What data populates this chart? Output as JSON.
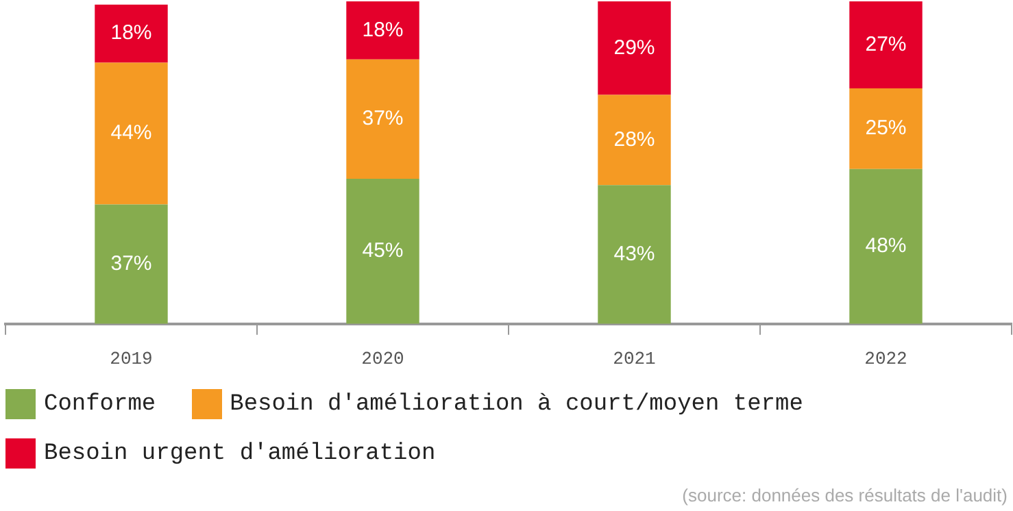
{
  "chart_data": {
    "type": "bar",
    "stacked": true,
    "legend": "bottom",
    "grid": false,
    "categories": [
      "2019",
      "2020",
      "2021",
      "2022"
    ],
    "series": [
      {
        "name": "Conforme",
        "color": "#86ac4e",
        "values": [
          37,
          45,
          43,
          48
        ],
        "value_labels": [
          "37%",
          "45%",
          "43%",
          "48%"
        ]
      },
      {
        "name": "Besoin d'amélioration à court/moyen terme",
        "color": "#f59a23",
        "values": [
          44,
          37,
          28,
          25
        ],
        "value_labels": [
          "44%",
          "37%",
          "28%",
          "25%"
        ]
      },
      {
        "name": "Besoin urgent d'amélioration",
        "color": "#e4002b",
        "values": [
          18,
          18,
          29,
          27
        ],
        "value_labels": [
          "18%",
          "18%",
          "29%",
          "27%"
        ]
      }
    ],
    "annotations": [
      "(source: données des résultats de l'audit)"
    ]
  }
}
